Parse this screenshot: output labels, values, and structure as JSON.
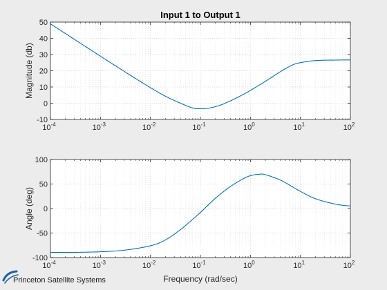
{
  "chart_data": [
    {
      "type": "line",
      "title": "Input 1 to Output 1",
      "xlabel": "",
      "ylabel": "Magnitude (db)",
      "xscale": "log",
      "xlim": [
        0.0001,
        100
      ],
      "ylim": [
        -10,
        50
      ],
      "yticks": [
        -10,
        0,
        10,
        20,
        30,
        40,
        50
      ],
      "grid": true,
      "color": "#0072bd",
      "series": [
        {
          "x": [
            0.0001,
            0.0003,
            0.001,
            0.003,
            0.01,
            0.02,
            0.04,
            0.07,
            0.1,
            0.15,
            0.25,
            0.4,
            0.7,
            1,
            2,
            4,
            7,
            10,
            20,
            50,
            100
          ],
          "values": [
            48.9,
            39.4,
            29.0,
            19.6,
            9.6,
            4.3,
            0.0,
            -2.9,
            -3.4,
            -3.0,
            -1.2,
            1.5,
            5.2,
            7.9,
            13.5,
            19.5,
            23.6,
            25.0,
            26.3,
            26.6,
            26.7
          ]
        }
      ]
    },
    {
      "type": "line",
      "title": "",
      "xlabel": "Frequency (rad/sec)",
      "ylabel": "Angle (deg)",
      "xscale": "log",
      "xlim": [
        0.0001,
        100
      ],
      "ylim": [
        -100,
        100
      ],
      "yticks": [
        -100,
        -50,
        0,
        50,
        100
      ],
      "grid": true,
      "color": "#0072bd",
      "series": [
        {
          "x": [
            0.0001,
            0.0003,
            0.001,
            0.003,
            0.01,
            0.02,
            0.04,
            0.07,
            0.1,
            0.2,
            0.4,
            0.7,
            1,
            1.5,
            2,
            4,
            7,
            10,
            20,
            50,
            100
          ],
          "values": [
            -89.5,
            -89.4,
            -88.2,
            -85.0,
            -76.0,
            -64.0,
            -43.0,
            -22.0,
            -8.0,
            21.0,
            45.0,
            60.0,
            67.0,
            70.0,
            69.0,
            58.0,
            44.0,
            35.0,
            20.0,
            9.0,
            5.0
          ]
        }
      ]
    }
  ],
  "logo": {
    "text": "Princeton Satellite Systems"
  }
}
